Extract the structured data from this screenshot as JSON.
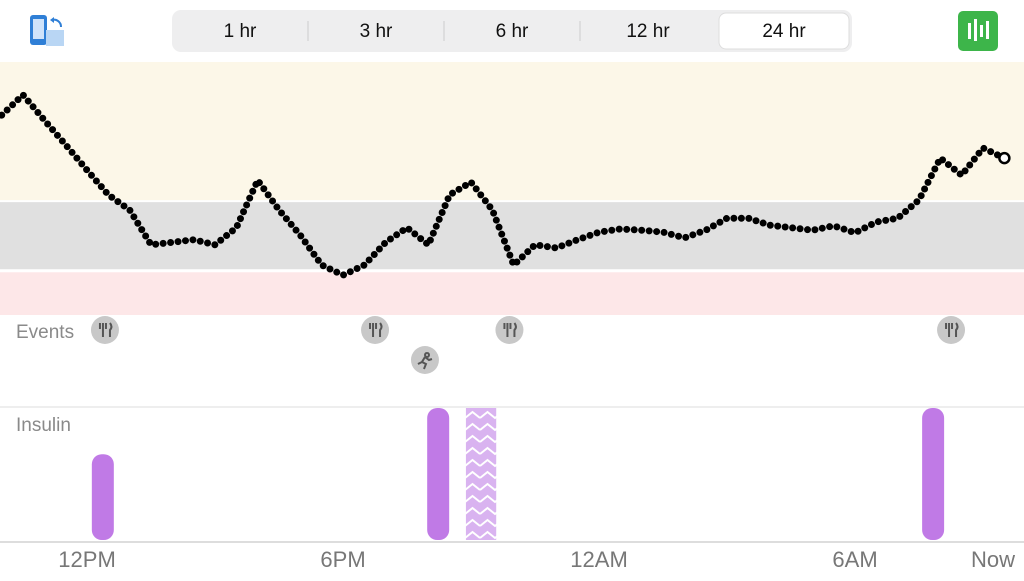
{
  "tabs": {
    "options": [
      "1 hr",
      "3 hr",
      "6 hr",
      "12 hr",
      "24 hr"
    ],
    "selected": 4
  },
  "chart_data": [
    {
      "type": "glucose",
      "x": [
        -2,
        -1.5,
        -1,
        -0.5,
        0,
        0.5,
        1,
        1.5,
        2,
        2.5,
        3,
        3.5,
        4,
        4.5,
        5,
        5.5,
        6,
        6.5,
        7,
        7.5,
        8,
        8.5,
        9,
        9.5,
        10,
        10.5,
        11,
        11.5,
        12,
        12.5,
        13,
        13.5,
        14,
        14.5,
        15,
        15.5,
        16,
        16.5,
        17,
        17.5,
        18,
        18.5,
        19,
        19.5,
        20,
        20.5,
        21,
        21.5
      ],
      "values": [
        316,
        348,
        308,
        269,
        229,
        190,
        166,
        111,
        115,
        119,
        111,
        138,
        213,
        166,
        126,
        79,
        63,
        79,
        115,
        138,
        111,
        190,
        210,
        166,
        79,
        111,
        106,
        119,
        131,
        136,
        134,
        131,
        122,
        134,
        153,
        153,
        142,
        138,
        134,
        141,
        130,
        147,
        153,
        182,
        248,
        221,
        264,
        248
      ],
      "xlim": [
        -2.04,
        21.96
      ],
      "ylim": [
        0,
        400
      ],
      "target_range": [
        70,
        180
      ],
      "xticks": [
        {
          "value": 0,
          "label": "12PM"
        },
        {
          "value": 6,
          "label": "6PM"
        },
        {
          "value": 12,
          "label": "12AM"
        },
        {
          "value": 18,
          "label": "6AM"
        },
        {
          "value": 21.6,
          "label": "Now"
        }
      ]
    },
    {
      "type": "events",
      "label": "Events",
      "meals": [
        0.42,
        6.75,
        9.9,
        20.25
      ],
      "exercise": [
        7.92
      ]
    },
    {
      "type": "bar",
      "label": "Insulin",
      "x": [
        0.37,
        8.23,
        19.83
      ],
      "values": [
        3.9,
        6,
        6
      ],
      "color": "#c07ae6",
      "extended": {
        "x": [
          8.88,
          9.59
        ],
        "value": 6
      },
      "ylim": [
        0,
        6
      ]
    }
  ]
}
